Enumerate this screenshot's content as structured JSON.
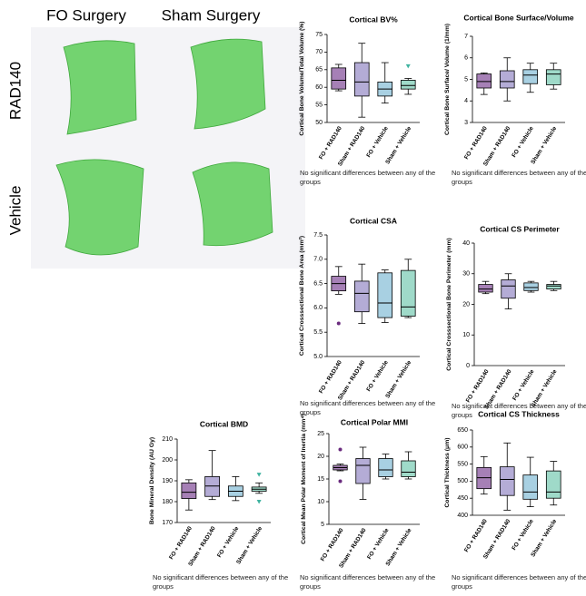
{
  "figure": {
    "columns": [
      "FO Surgery",
      "Sham Surgery"
    ],
    "rows": [
      "RAD140",
      "Vehicle"
    ]
  },
  "chart_data": [
    {
      "type": "box",
      "title": "Cortical BV%",
      "ylabel": "Cortical Bone Volume/Total Volume (%)",
      "note": "No significant differences between any of the groups",
      "categories": [
        "FO + RAD140",
        "Sham + RAD140",
        "FO + Vehicle",
        "Sham + Vehicle"
      ],
      "colors": [
        "#a680b6",
        "#b4acd6",
        "#a8d0e2",
        "#9fdac9"
      ],
      "min": [
        59,
        51.5,
        55.5,
        58
      ],
      "q1": [
        59.5,
        57.5,
        57.5,
        59.5
      ],
      "median": [
        62,
        61.5,
        59.5,
        60.5
      ],
      "q3": [
        65.5,
        67,
        61.5,
        62
      ],
      "max": [
        66.5,
        72.5,
        67,
        62.5
      ],
      "outliers": [
        [],
        [],
        [],
        [
          66
        ]
      ],
      "ylim": [
        50,
        75
      ],
      "yticks": [
        50,
        55,
        60,
        65,
        70,
        75
      ]
    },
    {
      "type": "box",
      "title": "Cortical Bone Surface/Volume",
      "ylabel": "Cortical Bone Surface/ Volume (1/mm)",
      "note": "No significant differences between any of the groups",
      "categories": [
        "FO + RAD140",
        "Sham + RAD140",
        "FO + Vehicle",
        "Sham + Vehicle"
      ],
      "colors": [
        "#a680b6",
        "#b4acd6",
        "#a8d0e2",
        "#9fdac9"
      ],
      "min": [
        4.3,
        4.0,
        4.4,
        4.55
      ],
      "q1": [
        4.6,
        4.6,
        4.8,
        4.75
      ],
      "median": [
        4.9,
        4.9,
        5.2,
        5.25
      ],
      "q3": [
        5.25,
        5.4,
        5.45,
        5.45
      ],
      "max": [
        5.3,
        6.0,
        5.75,
        5.75
      ],
      "outliers": [
        [],
        [],
        [],
        []
      ],
      "ylim": [
        3,
        7
      ],
      "yticks": [
        3,
        4,
        5,
        6,
        7
      ]
    },
    {
      "type": "box",
      "title": "Cortical CSA",
      "ylabel": "Cortical Crosssectional Bone Area (mm²)",
      "note": "No significant differences between any of the groups",
      "categories": [
        "FO + RAD140",
        "Sham + RAD140",
        "FO + Vehicle",
        "Sham + Vehicle"
      ],
      "colors": [
        "#a680b6",
        "#b4acd6",
        "#a8d0e2",
        "#9fdac9"
      ],
      "min": [
        6.28,
        5.68,
        5.7,
        5.8
      ],
      "q1": [
        6.35,
        5.92,
        5.8,
        5.83
      ],
      "median": [
        6.5,
        6.3,
        6.1,
        6.02
      ],
      "q3": [
        6.65,
        6.55,
        6.72,
        6.77
      ],
      "max": [
        6.85,
        6.9,
        6.78,
        7.0
      ],
      "outliers": [
        [
          5.68
        ],
        [],
        [],
        []
      ],
      "ylim": [
        5,
        7.5
      ],
      "yticks": [
        {
          "value": 5,
          "label": "5.0"
        },
        5.5,
        {
          "value": 6,
          "label": "6.0"
        },
        6.5,
        {
          "value": 7,
          "label": "7.0"
        },
        7.5
      ]
    },
    {
      "type": "box",
      "title": "Cortical CS Perimeter",
      "ylabel": "Cortical Crosssectional Bone Perimeter (mm)",
      "note": "No significant differences between any of the groups",
      "categories": [
        "FO + RAD140",
        "Sham + RAD140",
        "FO + Vehicle",
        "Sham + Vehicle"
      ],
      "colors": [
        "#a680b6",
        "#b4acd6",
        "#a8d0e2",
        "#9fdac9"
      ],
      "min": [
        23.5,
        18.5,
        24,
        24.5
      ],
      "q1": [
        24,
        22,
        24.5,
        25
      ],
      "median": [
        25,
        26,
        25.5,
        26
      ],
      "q3": [
        26.5,
        28,
        27,
        26.5
      ],
      "max": [
        27.5,
        30,
        27.5,
        27.5
      ],
      "outliers": [
        [],
        [],
        [],
        []
      ],
      "ylim": [
        0,
        40
      ],
      "yticks": [
        0,
        10,
        20,
        30,
        40
      ]
    },
    {
      "type": "box",
      "title": "Cortical BMD",
      "ylabel": "Bone Mineral Density (AU Gy)",
      "note": "No significant differences between any of the groups",
      "categories": [
        "FO + RAD140",
        "Sham + RAD140",
        "FO + Vehicle",
        "Sham + Vehicle"
      ],
      "colors": [
        "#a680b6",
        "#b4acd6",
        "#a8d0e2",
        "#9fdac9"
      ],
      "min": [
        176,
        181,
        180.5,
        184
      ],
      "q1": [
        181.5,
        182.5,
        182.5,
        185
      ],
      "median": [
        184.5,
        187.5,
        185,
        186
      ],
      "q3": [
        189,
        192,
        187.5,
        187
      ],
      "max": [
        190.5,
        204.5,
        192,
        189
      ],
      "outliers": [
        [],
        [],
        [],
        [
          193,
          180
        ]
      ],
      "ylim": [
        170,
        210
      ],
      "yticks": [
        170,
        180,
        190,
        200,
        210
      ]
    },
    {
      "type": "box",
      "title": "Cortical Polar MMI",
      "ylabel": "Cortical Mean Polar Moment of Inertia (mm⁴)",
      "note": "No significant differences between any of the groups",
      "categories": [
        "FO + RAD140",
        "Sham + RAD140",
        "FO + Vehicle",
        "Sham + Vehicle"
      ],
      "colors": [
        "#a680b6",
        "#b4acd6",
        "#a8d0e2",
        "#9fdac9"
      ],
      "min": [
        16.8,
        10.5,
        15,
        15
      ],
      "q1": [
        17,
        14,
        15.5,
        15.5
      ],
      "median": [
        17.5,
        18,
        17,
        16.5
      ],
      "q3": [
        18,
        19.5,
        19.5,
        19
      ],
      "max": [
        18.3,
        22,
        20.5,
        21
      ],
      "outliers": [
        [
          21.5,
          14.5
        ],
        [],
        [],
        []
      ],
      "ylim": [
        5,
        25
      ],
      "yticks": [
        5,
        10,
        15,
        20,
        25
      ]
    },
    {
      "type": "box",
      "title": "Cortical CS Thickness",
      "ylabel": "Cortical Thickness (μm)",
      "note": "No significant differences between any of the groups",
      "categories": [
        "FO + RAD140",
        "Sham + RAD140",
        "FO + Vehicle",
        "Sham + Vehicle"
      ],
      "colors": [
        "#a680b6",
        "#b4acd6",
        "#a8d0e2",
        "#9fdac9"
      ],
      "min": [
        462,
        415,
        425,
        430
      ],
      "q1": [
        478,
        458,
        447,
        450
      ],
      "median": [
        510,
        505,
        468,
        468
      ],
      "q3": [
        540,
        542,
        518,
        530
      ],
      "max": [
        572,
        612,
        570,
        558
      ],
      "outliers": [
        [],
        [],
        [],
        []
      ],
      "ylim": [
        400,
        650
      ],
      "yticks": [
        400,
        450,
        500,
        550,
        600,
        650
      ]
    }
  ]
}
